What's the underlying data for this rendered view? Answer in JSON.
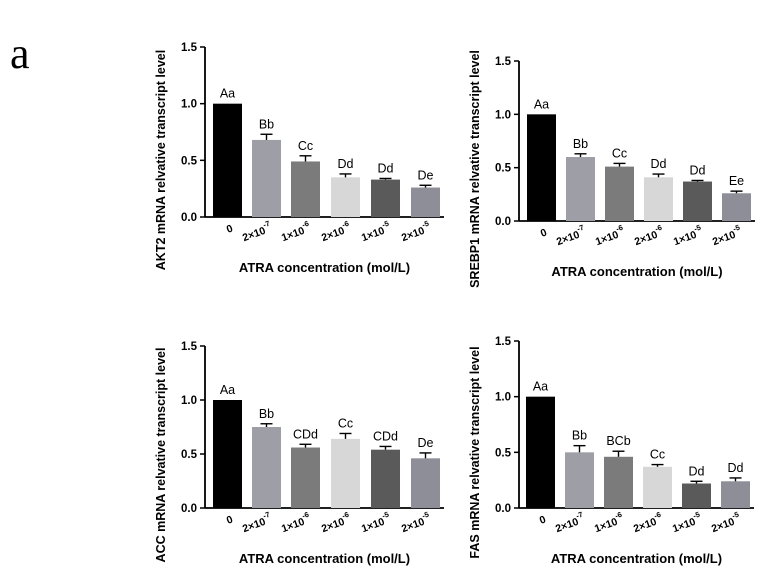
{
  "figure": {
    "panel_label": "a"
  },
  "chart_data": [
    {
      "type": "bar",
      "title": "",
      "xlabel": "ATRA concentration (mol/L)",
      "ylabel": "AKT2 mRNA relvative transcript level",
      "ylim": [
        0,
        1.5
      ],
      "yticks": [
        "0.0",
        "0.5",
        "1.0",
        "1.5"
      ],
      "categories": [
        "0",
        "2×10⁻⁷",
        "1×10⁻⁶",
        "2×10⁻⁶",
        "1×10⁻⁵",
        "2×10⁻⁵"
      ],
      "values": [
        1.0,
        0.68,
        0.49,
        0.35,
        0.33,
        0.26
      ],
      "errors": [
        0.0,
        0.05,
        0.05,
        0.03,
        0.01,
        0.02
      ],
      "labels": [
        "Aa",
        "Bb",
        "Cc",
        "Dd",
        "Dd",
        "De"
      ],
      "bar_colors": [
        "#000000",
        "#9e9ea6",
        "#7b7b7b",
        "#d7d7d7",
        "#5a5a5a",
        "#8e8e99"
      ]
    },
    {
      "type": "bar",
      "title": "",
      "xlabel": "ATRA concentration (mol/L)",
      "ylabel": "SREBP1 mRNA relvative transcript level",
      "ylim": [
        0,
        1.5
      ],
      "yticks": [
        "0.0",
        "0.5",
        "1.0",
        "1.5"
      ],
      "categories": [
        "0",
        "2×10⁻⁷",
        "1×10⁻⁶",
        "2×10⁻⁶",
        "1×10⁻⁵",
        "2×10⁻⁵"
      ],
      "values": [
        1.0,
        0.6,
        0.51,
        0.41,
        0.37,
        0.26
      ],
      "errors": [
        0.0,
        0.03,
        0.03,
        0.03,
        0.01,
        0.02
      ],
      "labels": [
        "Aa",
        "Bb",
        "Cc",
        "Dd",
        "Dd",
        "Ee"
      ],
      "bar_colors": [
        "#000000",
        "#9e9ea6",
        "#7b7b7b",
        "#d7d7d7",
        "#5a5a5a",
        "#8e8e99"
      ]
    },
    {
      "type": "bar",
      "title": "",
      "xlabel": "ATRA concentration (mol/L)",
      "ylabel": "ACC mRNA relvative transcript level",
      "ylim": [
        0,
        1.5
      ],
      "yticks": [
        "0.0",
        "0.5",
        "1.0",
        "1.5"
      ],
      "categories": [
        "0",
        "2×10⁻⁷",
        "1×10⁻⁶",
        "2×10⁻⁶",
        "1×10⁻⁵",
        "2×10⁻⁵"
      ],
      "values": [
        1.0,
        0.75,
        0.56,
        0.64,
        0.54,
        0.46
      ],
      "errors": [
        0.0,
        0.03,
        0.03,
        0.05,
        0.03,
        0.05
      ],
      "labels": [
        "Aa",
        "Bb",
        "CDd",
        "Cc",
        "CDd",
        "De"
      ],
      "bar_colors": [
        "#000000",
        "#9e9ea6",
        "#7b7b7b",
        "#d7d7d7",
        "#5a5a5a",
        "#8e8e99"
      ]
    },
    {
      "type": "bar",
      "title": "",
      "xlabel": "ATRA concentration (mol/L)",
      "ylabel": "FAS mRNA relvative transcript level",
      "ylim": [
        0,
        1.5
      ],
      "yticks": [
        "0.0",
        "0.5",
        "1.0",
        "1.5"
      ],
      "categories": [
        "0",
        "2×10⁻⁷",
        "1×10⁻⁶",
        "2×10⁻⁶",
        "1×10⁻⁵",
        "2×10⁻⁵"
      ],
      "values": [
        1.0,
        0.5,
        0.46,
        0.37,
        0.22,
        0.24
      ],
      "errors": [
        0.0,
        0.06,
        0.05,
        0.02,
        0.02,
        0.03
      ],
      "labels": [
        "Aa",
        "Bb",
        "BCb",
        "Cc",
        "Dd",
        "Dd"
      ],
      "bar_colors": [
        "#000000",
        "#9e9ea6",
        "#7b7b7b",
        "#d7d7d7",
        "#5a5a5a",
        "#8e8e99"
      ]
    }
  ]
}
